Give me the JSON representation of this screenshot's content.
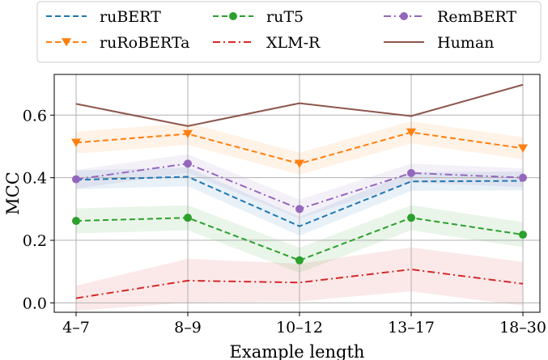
{
  "chart_data": {
    "type": "line",
    "title": "",
    "xlabel": "Example length",
    "ylabel": "MCC",
    "categories": [
      "4–7",
      "8–9",
      "10–12",
      "13–17",
      "18–30"
    ],
    "yticks": [
      0.0,
      0.2,
      0.4,
      0.6
    ],
    "yticklabels": [
      "0.0",
      "0.2",
      "0.4",
      "0.6"
    ],
    "ylim": [
      -0.03,
      0.73
    ],
    "grid": true,
    "legend_position": "top",
    "series": [
      {
        "name": "ruBERT",
        "values": [
          0.393,
          0.403,
          0.245,
          0.388,
          0.39
        ],
        "band": [
          0.03,
          0.03,
          0.03,
          0.03,
          0.03
        ],
        "color": "#1f77b4",
        "dash": "dashed",
        "marker": "none"
      },
      {
        "name": "ruRoBERTa",
        "values": [
          0.512,
          0.54,
          0.445,
          0.545,
          0.494
        ],
        "band": [
          0.035,
          0.035,
          0.035,
          0.035,
          0.035
        ],
        "color": "#ff7f0e",
        "dash": "dashed",
        "marker": "triangle-down"
      },
      {
        "name": "ruT5",
        "values": [
          0.262,
          0.272,
          0.136,
          0.272,
          0.218
        ],
        "band": [
          0.04,
          0.04,
          0.04,
          0.04,
          0.04
        ],
        "color": "#2ca02c",
        "dash": "dashed",
        "marker": "circle"
      },
      {
        "name": "XLM-R",
        "values": [
          0.015,
          0.071,
          0.065,
          0.107,
          0.061
        ],
        "band": [
          0.04,
          0.07,
          0.06,
          0.07,
          0.07
        ],
        "color": "#d62728",
        "dash": "dashdot",
        "marker": "none"
      },
      {
        "name": "RemBERT",
        "values": [
          0.395,
          0.445,
          0.3,
          0.415,
          0.4
        ],
        "band": [
          0.03,
          0.03,
          0.03,
          0.03,
          0.03
        ],
        "color": "#9467bd",
        "dash": "dashdot",
        "marker": "circle"
      },
      {
        "name": "Human",
        "values": [
          0.636,
          0.565,
          0.638,
          0.597,
          0.697
        ],
        "band": [
          0,
          0,
          0,
          0,
          0
        ],
        "color": "#8c564b",
        "dash": "solid",
        "marker": "none"
      }
    ]
  }
}
